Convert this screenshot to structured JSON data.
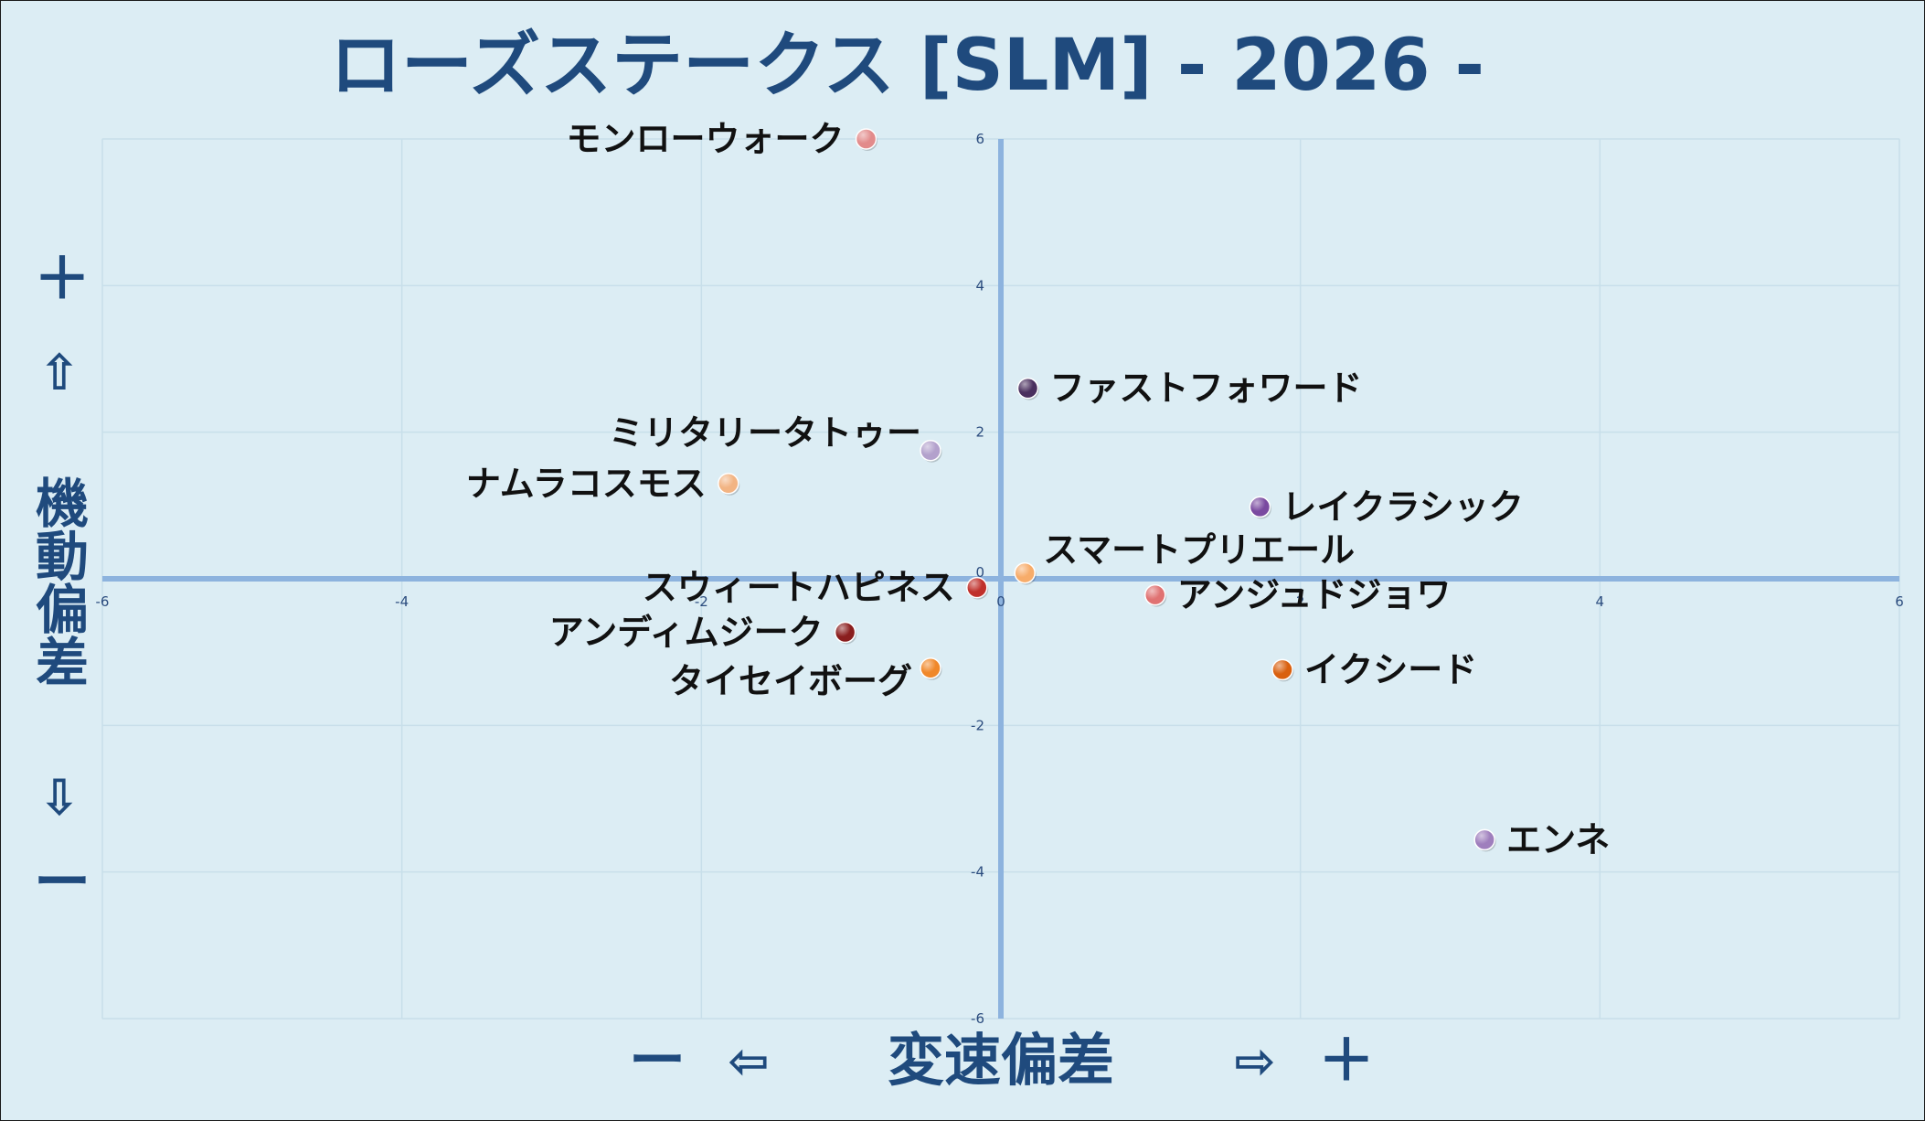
{
  "chart_data": {
    "type": "scatter",
    "title": "ローズステークス [SLM]  - 2026 -",
    "xlabel": "変速偏差",
    "ylabel": "機動偏差",
    "x_minus": "ー",
    "x_plus": "＋",
    "x_minus_arrow": "⇦",
    "x_plus_arrow": "⇨",
    "y_plus": "＋",
    "y_minus": "ー",
    "y_plus_arrow": "⇧",
    "y_minus_arrow": "⇩",
    "xlim": [
      -6,
      6
    ],
    "ylim": [
      -6,
      6
    ],
    "x_ticks": [
      -6,
      -4,
      -2,
      0,
      2,
      4,
      6
    ],
    "y_ticks": [
      -6,
      -4,
      -2,
      0,
      2,
      4,
      6
    ],
    "grid": true,
    "points": [
      {
        "label": "モンローウォーク",
        "x": -0.9,
        "y": 6.0,
        "color": "#e28b8b",
        "label_side": "left"
      },
      {
        "label": "ファストフォワード",
        "x": 0.18,
        "y": 2.6,
        "color": "#4a2f5e",
        "label_side": "right"
      },
      {
        "label": "ミリタリータトゥー",
        "x": -0.47,
        "y": 1.75,
        "color": "#b3a1cc",
        "label_side": "left-up"
      },
      {
        "label": "ナムラコスモス",
        "x": -1.82,
        "y": 1.3,
        "color": "#f2b483",
        "label_side": "left"
      },
      {
        "label": "レイクラシック",
        "x": 1.73,
        "y": 0.98,
        "color": "#7a4aa0",
        "label_side": "right"
      },
      {
        "label": "スマートプリエール",
        "x": 0.16,
        "y": 0.08,
        "color": "#f7ac6a",
        "label_side": "right-up"
      },
      {
        "label": "スウィートハピネス",
        "x": -0.16,
        "y": -0.12,
        "color": "#c0302b",
        "label_side": "left"
      },
      {
        "label": "アンジュドジョワ",
        "x": 1.03,
        "y": -0.22,
        "color": "#e07272",
        "label_side": "right"
      },
      {
        "label": "アンディムジーク",
        "x": -1.04,
        "y": -0.73,
        "color": "#8a1e1e",
        "label_side": "left"
      },
      {
        "label": "タイセイボーグ",
        "x": -0.47,
        "y": -1.22,
        "color": "#f0882a",
        "label_side": "left-down"
      },
      {
        "label": "イクシード",
        "x": 1.88,
        "y": -1.24,
        "color": "#d9600f",
        "label_side": "right"
      },
      {
        "label": "エンネ",
        "x": 3.23,
        "y": -3.56,
        "color": "#9f7fbd",
        "label_side": "right"
      }
    ]
  }
}
